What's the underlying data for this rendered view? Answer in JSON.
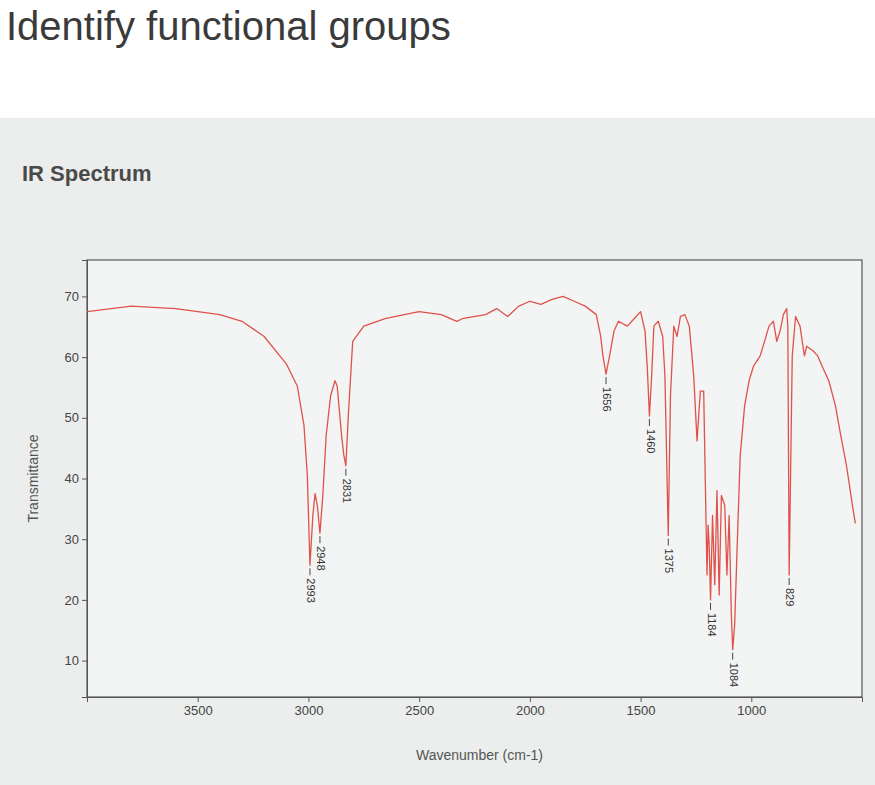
{
  "header": {
    "title": "Identify functional groups"
  },
  "chart_data": {
    "type": "line",
    "title": "IR Spectrum",
    "x_label": "Wavenumber (cm-1)",
    "y_label": "Transmittance",
    "color": "#e0514b",
    "xlim": [
      4000,
      500
    ],
    "ylim": [
      4,
      76
    ],
    "xticks": [
      3500,
      3000,
      2500,
      2000,
      1500,
      1000
    ],
    "yticks": [
      10,
      20,
      30,
      40,
      50,
      60,
      70
    ],
    "x": [
      4000,
      3800,
      3600,
      3400,
      3300,
      3200,
      3100,
      3050,
      3020,
      3005,
      2993,
      2980,
      2970,
      2960,
      2948,
      2935,
      2920,
      2900,
      2880,
      2870,
      2850,
      2840,
      2831,
      2820,
      2800,
      2750,
      2650,
      2500,
      2400,
      2330,
      2300,
      2200,
      2150,
      2100,
      2050,
      2000,
      1950,
      1900,
      1850,
      1800,
      1750,
      1700,
      1680,
      1670,
      1656,
      1640,
      1620,
      1600,
      1560,
      1520,
      1500,
      1480,
      1470,
      1460,
      1450,
      1440,
      1420,
      1400,
      1390,
      1375,
      1365,
      1350,
      1335,
      1320,
      1300,
      1280,
      1260,
      1245,
      1230,
      1215,
      1200,
      1195,
      1190,
      1184,
      1175,
      1165,
      1155,
      1145,
      1135,
      1120,
      1110,
      1100,
      1090,
      1084,
      1075,
      1065,
      1050,
      1030,
      1010,
      990,
      960,
      940,
      920,
      900,
      885,
      870,
      855,
      840,
      835,
      829,
      822,
      815,
      800,
      780,
      760,
      750,
      720,
      700,
      680,
      650,
      620,
      600,
      570,
      540,
      530
    ],
    "values": [
      67.5,
      68.4,
      68,
      67,
      65.9,
      63.4,
      58.9,
      55.2,
      48.7,
      40.5,
      25.7,
      33.9,
      37.5,
      35.6,
      31,
      37.2,
      47,
      53.6,
      56.1,
      55.2,
      47,
      43.8,
      42.1,
      50.3,
      62.6,
      65.1,
      66.4,
      67.5,
      67,
      65.9,
      66.4,
      67,
      68,
      66.7,
      68.4,
      69.2,
      68.7,
      69.5,
      70,
      69.2,
      68.4,
      67,
      63.4,
      60.2,
      57.2,
      60.2,
      64.3,
      65.9,
      65.1,
      66.7,
      67.5,
      64.3,
      58.5,
      50.3,
      56.9,
      65.1,
      65.9,
      63.4,
      56.9,
      30.6,
      53.6,
      65.1,
      63.4,
      66.7,
      67,
      65.1,
      56.9,
      46.2,
      54.4,
      54.4,
      24.1,
      32.3,
      29,
      20,
      33.9,
      22.5,
      38,
      20.8,
      37.2,
      35.6,
      24.1,
      33.9,
      17.5,
      11.8,
      15.9,
      27.4,
      43.8,
      52,
      56.1,
      58.5,
      60.2,
      62.6,
      65.1,
      65.9,
      62.6,
      64.3,
      67,
      68,
      65.1,
      24.1,
      42.1,
      60.2,
      66.7,
      65.1,
      60.2,
      61.8,
      61,
      60.2,
      58.5,
      56.1,
      52,
      47.9,
      42.1,
      34.8,
      32.6
    ],
    "annotations": [
      2993,
      2948,
      2831,
      1656,
      1460,
      1375,
      1184,
      1084,
      829
    ]
  }
}
